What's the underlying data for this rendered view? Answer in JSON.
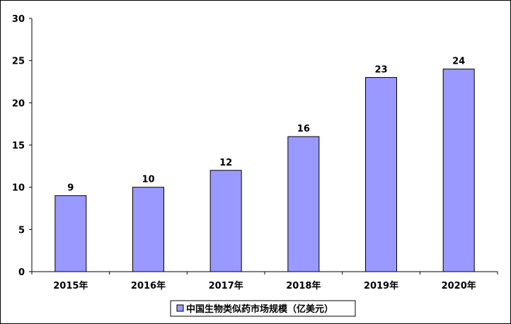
{
  "chart_data": {
    "type": "bar",
    "categories": [
      "2015年",
      "2016年",
      "2017年",
      "2018年",
      "2019年",
      "2020年"
    ],
    "series": [
      {
        "name": "中国生物类似药市场规模（亿美元）",
        "values": [
          9,
          10,
          12,
          16,
          23,
          24
        ]
      }
    ],
    "data_labels": [
      "9",
      "10",
      "12",
      "16",
      "23",
      "24"
    ],
    "y_ticks": [
      "0",
      "5",
      "10",
      "15",
      "20",
      "25",
      "30"
    ],
    "ylim": [
      0,
      30
    ],
    "y_tick_values": [
      0,
      5,
      10,
      15,
      20,
      25,
      30
    ],
    "grid": false,
    "legend_position": "bottom",
    "colors": {
      "bar_fill": "#9999ff",
      "bar_stroke": "#000000",
      "axis": "#000000"
    }
  }
}
